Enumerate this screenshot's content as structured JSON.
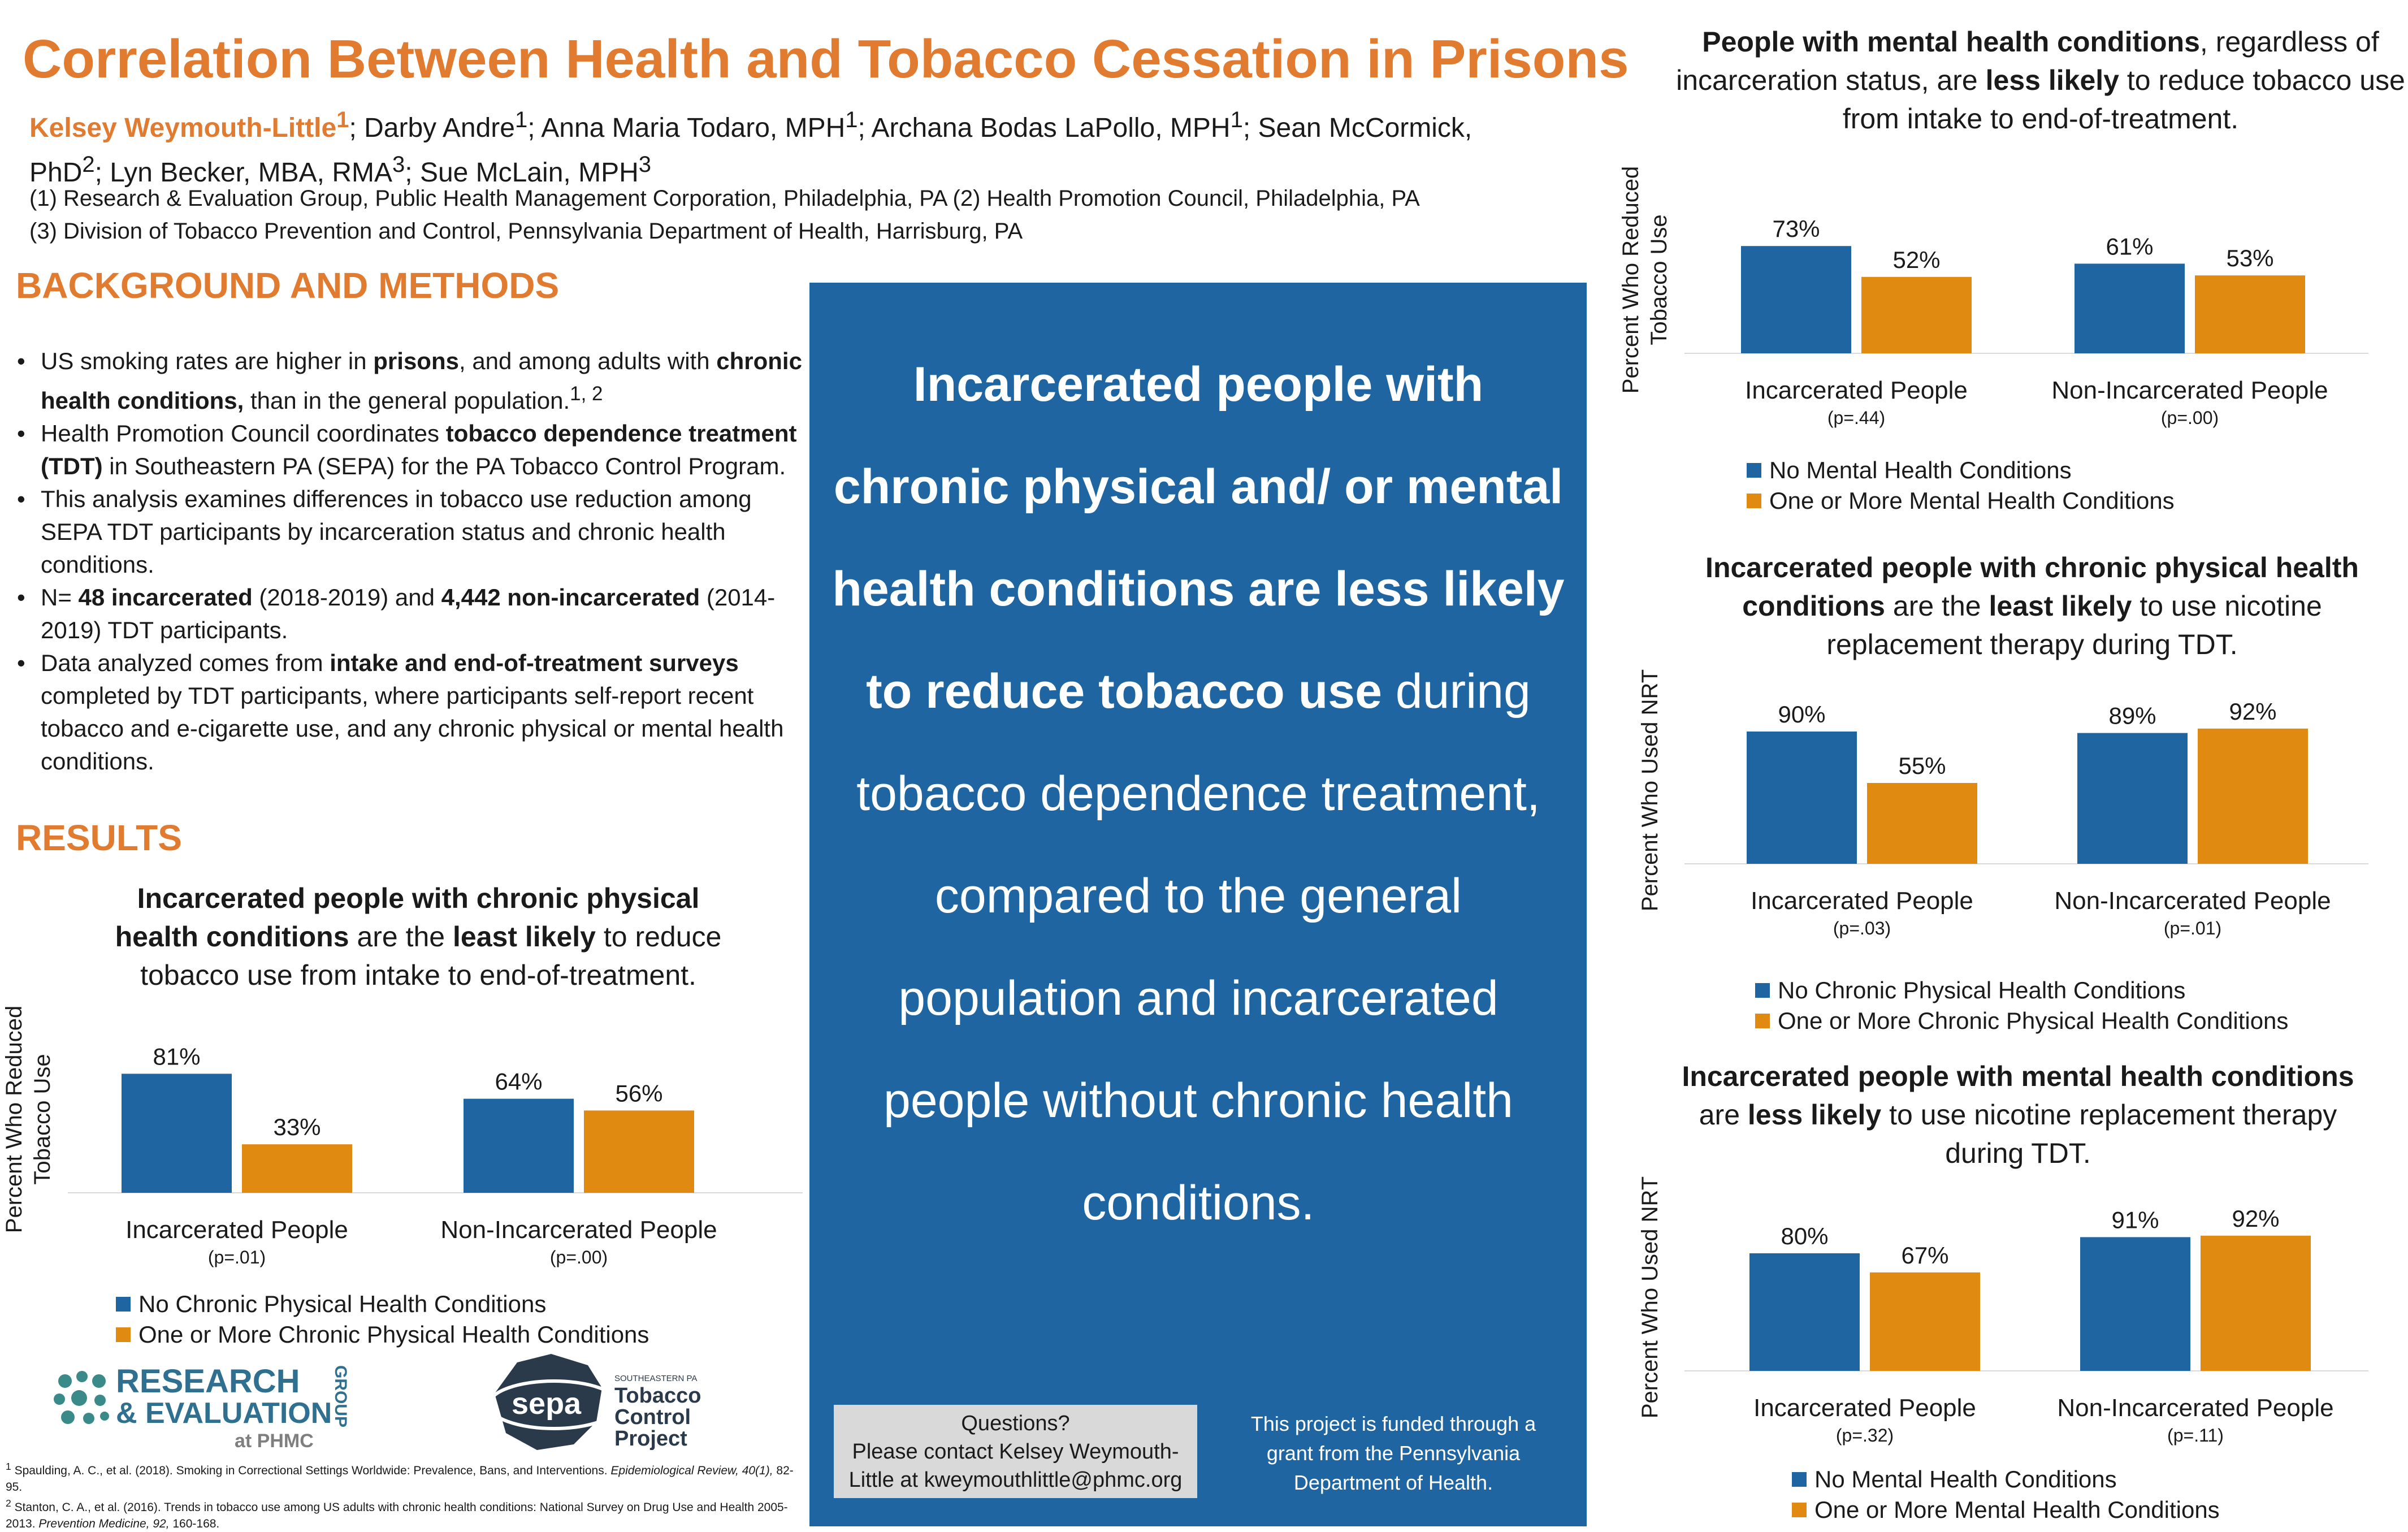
{
  "header": {
    "title": "Correlation Between Health and Tobacco Cessation in Prisons",
    "author_lead": "Kelsey Weymouth-Little",
    "author_lead_sup": "1",
    "authors_rest_1": "; Darby Andre",
    "sup_1": "1",
    "authors_rest_2": "; Anna Maria Todaro, MPH",
    "sup_2": "1",
    "authors_rest_3": "; Archana Bodas LaPollo, MPH",
    "sup_3": "1",
    "authors_rest_4": "; Sean McCormick, PhD",
    "sup_4": "2",
    "authors_rest_5": "; Lyn Becker, MBA, RMA",
    "sup_5": "3",
    "authors_rest_6": "; Sue McLain, MPH",
    "sup_6": "3",
    "affiliation_1": "(1) Research & Evaluation Group, Public Health Management Corporation, Philadelphia, PA (2) Health Promotion Council, Philadelphia, PA",
    "affiliation_2": "(3) Division of Tobacco Prevention and Control, Pennsylvania Department of Health, Harrisburg, PA"
  },
  "background": {
    "heading": "BACKGROUND AND METHODS",
    "b1_a": "US smoking rates are higher in ",
    "b1_b": "prisons",
    "b1_c": ", and among adults with ",
    "b1_d": "chronic health conditions,",
    "b1_e": " than in the general population.",
    "b1_sup": "1, 2",
    "b2_a": "Health Promotion Council coordinates ",
    "b2_b": "tobacco dependence treatment (TDT)",
    "b2_c": " in Southeastern PA (SEPA) for the PA Tobacco Control Program.",
    "b3": "This analysis examines differences in tobacco use reduction among SEPA TDT participants by incarceration status and chronic health conditions.",
    "b4_a": "N= ",
    "b4_b": "48 incarcerated",
    "b4_c": " (2018-2019) and ",
    "b4_d": "4,442 non-incarcerated",
    "b4_e": " (2014-2019) TDT participants.",
    "b5_a": "Data analyzed comes from ",
    "b5_b": "intake and end-of-treatment surveys",
    "b5_c": " completed by TDT participants, where participants self-report recent tobacco and e-cigarette use, and any chronic physical or mental health conditions."
  },
  "results": {
    "heading": "RESULTS"
  },
  "center": {
    "bold": "Incarcerated people with chronic physical and/ or mental health conditions are less likely to reduce tobacco use",
    "rest": " during tobacco dependence treatment, compared to the general population and incarcerated people without chronic health conditions."
  },
  "questions": {
    "line1": "Questions?",
    "line2": "Please contact Kelsey Weymouth-Little at kweymouthlittle@phmc.org"
  },
  "funding": "This project is funded through a grant from the Pennsylvania Department of Health.",
  "logos": {
    "rg_line1": "RESEARCH",
    "rg_line2": "& EVALUATION",
    "rg_group": "GROUP",
    "rg_at": "at PHMC",
    "sepa_word": "sepa",
    "sepa_small": "SOUTHEASTERN PA",
    "sepa_line1": "Tobacco",
    "sepa_line2": "Control",
    "sepa_line3": "Project"
  },
  "references": {
    "r1_sup": "1",
    "r1": " Spaulding, A. C., et al. (2018). Smoking in Correctional Settings Worldwide: Prevalence, Bans, and Interventions. ",
    "r1_journal": "Epidemiological Review, 40(1),",
    "r1_end": " 82-95.",
    "r2_sup": "2",
    "r2": " Stanton, C. A., et al. (2016). Trends in tobacco use among US adults with chronic health conditions: National Survey on Drug Use and Health 2005-2013. ",
    "r2_journal": "Prevention Medicine, 92,",
    "r2_end": " 160-168."
  },
  "colors": {
    "blue": "#1f65a1",
    "orange": "#e08a12",
    "title_orange": "#e07b30"
  },
  "chart_data": [
    {
      "type": "bar",
      "title_parts": [
        {
          "t": "Incarcerated people with chronic physical health conditions",
          "b": true
        },
        {
          "t": " are the ",
          "b": false
        },
        {
          "t": "least likely",
          "b": true
        },
        {
          "t": " to reduce tobacco use from intake to end-of-treatment.",
          "b": false
        }
      ],
      "ylabel": [
        "Percent Who Reduced",
        "Tobacco Use"
      ],
      "categories": [
        "Incarcerated People",
        "Non-Incarcerated People"
      ],
      "category_notes": [
        "(p=.01)",
        "(p=.00)"
      ],
      "series": [
        {
          "name": "No Chronic Physical Health Conditions",
          "values": [
            81,
            64
          ],
          "labels": [
            "81%",
            "64%"
          ]
        },
        {
          "name": "One or More Chronic Physical Health Conditions",
          "values": [
            33,
            56
          ],
          "labels": [
            "33%",
            "56%"
          ]
        }
      ],
      "ylim": [
        0,
        100
      ]
    },
    {
      "type": "bar",
      "title_parts": [
        {
          "t": "People with mental health conditions",
          "b": true
        },
        {
          "t": ", regardless of incarceration status, are ",
          "b": false
        },
        {
          "t": "less likely",
          "b": true
        },
        {
          "t": " to reduce tobacco use from intake to end-of-treatment.",
          "b": false
        }
      ],
      "ylabel": [
        "Percent Who Reduced",
        "Tobacco Use"
      ],
      "categories": [
        "Incarcerated People",
        "Non-Incarcerated People"
      ],
      "category_notes": [
        "(p=.44)",
        "(p=.00)"
      ],
      "series": [
        {
          "name": "No Mental Health Conditions",
          "values": [
            73,
            61
          ],
          "labels": [
            "73%",
            "61%"
          ]
        },
        {
          "name": "One or More Mental Health Conditions",
          "values": [
            52,
            53
          ],
          "labels": [
            "52%",
            "53%"
          ]
        }
      ],
      "ylim": [
        0,
        100
      ]
    },
    {
      "type": "bar",
      "title_parts": [
        {
          "t": "Incarcerated people with chronic physical health conditions",
          "b": true
        },
        {
          "t": " are the ",
          "b": false
        },
        {
          "t": "least likely",
          "b": true
        },
        {
          "t": " to use nicotine replacement therapy during TDT.",
          "b": false
        }
      ],
      "ylabel": [
        "Percent Who Used NRT"
      ],
      "categories": [
        "Incarcerated People",
        "Non-Incarcerated People"
      ],
      "category_notes": [
        "(p=.03)",
        "(p=.01)"
      ],
      "series": [
        {
          "name": "No Chronic Physical Health Conditions",
          "values": [
            90,
            89
          ],
          "labels": [
            "90%",
            "89%"
          ]
        },
        {
          "name": "One or More Chronic Physical Health Conditions",
          "values": [
            55,
            92
          ],
          "labels": [
            "55%",
            "92%"
          ]
        }
      ],
      "ylim": [
        0,
        100
      ]
    },
    {
      "type": "bar",
      "title_parts": [
        {
          "t": "Incarcerated people with mental health conditions",
          "b": true
        },
        {
          "t": " are ",
          "b": false
        },
        {
          "t": "less likely",
          "b": true
        },
        {
          "t": " to use nicotine replacement therapy during TDT.",
          "b": false
        }
      ],
      "ylabel": [
        "Percent Who Used NRT"
      ],
      "categories": [
        "Incarcerated People",
        "Non-Incarcerated People"
      ],
      "category_notes": [
        "(p=.32)",
        "(p=.11)"
      ],
      "series": [
        {
          "name": "No Mental Health Conditions",
          "values": [
            80,
            91
          ],
          "labels": [
            "80%",
            "91%"
          ]
        },
        {
          "name": "One or More Mental Health Conditions",
          "values": [
            67,
            92
          ],
          "labels": [
            "67%",
            "92%"
          ]
        }
      ],
      "ylim": [
        0,
        100
      ]
    }
  ]
}
